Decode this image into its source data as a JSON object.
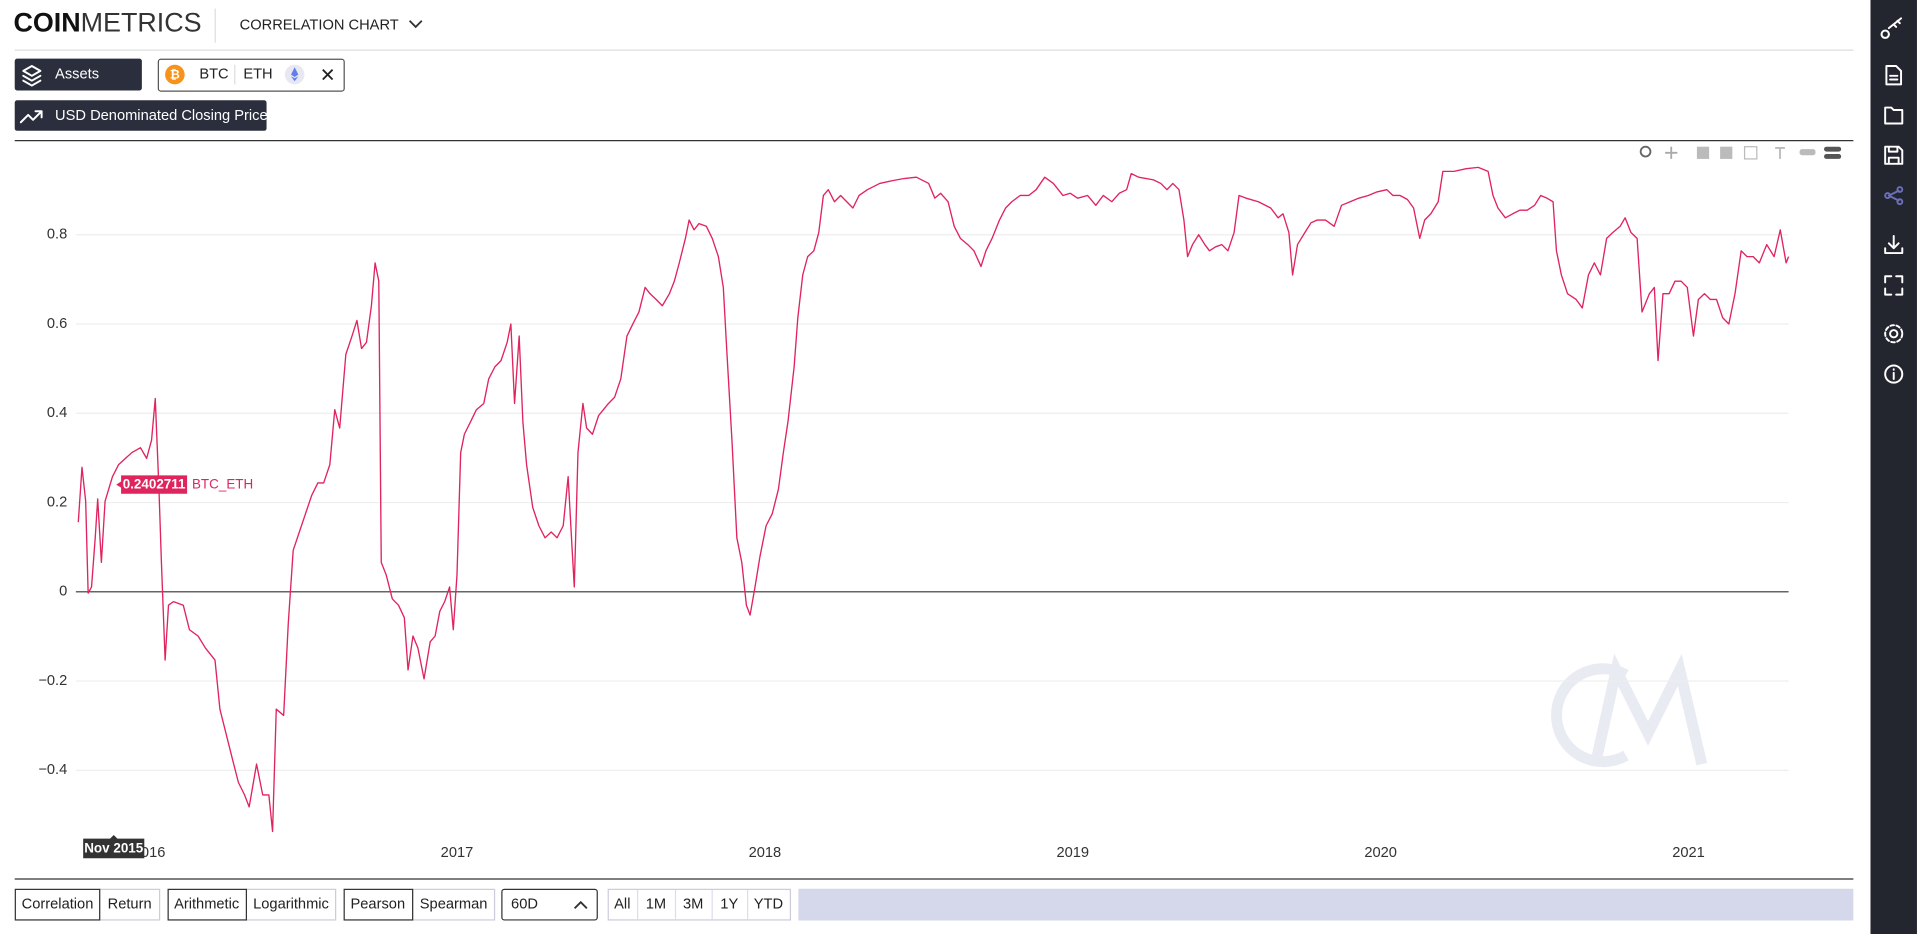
{
  "header": {
    "logo_bold": "COIN",
    "logo_light": "METRICS",
    "title": "CORRELATION CHART"
  },
  "toolbar": {
    "assets_button": "Assets",
    "assets": [
      "BTC",
      "ETH"
    ],
    "metric_button": "USD Denominated Closing Price"
  },
  "chart_data": {
    "type": "line",
    "x": [
      2015.77,
      2015.782,
      2015.794,
      2015.802,
      2015.813,
      2015.825,
      2015.833,
      2015.845,
      2015.857,
      2015.881,
      2015.901,
      2015.944,
      2015.972,
      2015.992,
      2016.008,
      2016.02,
      2016.032,
      2016.04,
      2016.052,
      2016.063,
      2016.079,
      2016.111,
      2016.131,
      2016.159,
      2016.183,
      2016.214,
      2016.23,
      2016.25,
      2016.27,
      2016.29,
      2016.31,
      2016.325,
      2016.349,
      2016.369,
      2016.389,
      2016.401,
      2016.413,
      2016.437,
      2016.452,
      2016.468,
      2016.488,
      2016.508,
      2016.528,
      2016.548,
      2016.567,
      2016.587,
      2016.603,
      2016.619,
      2016.639,
      2016.659,
      2016.675,
      2016.69,
      2016.706,
      2016.722,
      2016.734,
      2016.746,
      2016.754,
      2016.77,
      2016.79,
      2016.81,
      2016.829,
      2016.841,
      2016.857,
      2016.873,
      2016.893,
      2016.913,
      2016.929,
      2016.944,
      2016.96,
      2016.976,
      2016.988,
      2017.0,
      2017.012,
      2017.024,
      2017.044,
      2017.063,
      2017.087,
      2017.103,
      2017.123,
      2017.143,
      2017.163,
      2017.175,
      2017.187,
      2017.202,
      2017.214,
      2017.226,
      2017.246,
      2017.266,
      2017.286,
      2017.306,
      2017.325,
      2017.345,
      2017.361,
      2017.373,
      2017.381,
      2017.393,
      2017.409,
      2017.421,
      2017.44,
      2017.46,
      2017.492,
      2017.512,
      2017.532,
      2017.552,
      2017.571,
      2017.591,
      2017.611,
      2017.627,
      2017.647,
      2017.667,
      2017.69,
      2017.706,
      2017.722,
      2017.742,
      2017.754,
      2017.77,
      2017.786,
      2017.81,
      2017.829,
      2017.849,
      2017.865,
      2017.877,
      2017.893,
      2017.909,
      2017.925,
      2017.94,
      2017.952,
      2017.968,
      2017.984,
      2018.004,
      2018.024,
      2018.044,
      2018.06,
      2018.075,
      2018.095,
      2018.107,
      2018.123,
      2018.139,
      2018.159,
      2018.175,
      2018.19,
      2018.206,
      2018.226,
      2018.246,
      2018.266,
      2018.286,
      2018.306,
      2018.333,
      2018.373,
      2018.413,
      2018.452,
      2018.492,
      2018.532,
      2018.552,
      2018.571,
      2018.595,
      2018.615,
      2018.635,
      2018.659,
      2018.679,
      2018.702,
      2018.718,
      2018.738,
      2018.762,
      2018.782,
      2018.802,
      2018.829,
      2018.857,
      2018.881,
      2018.909,
      2018.937,
      2018.968,
      2018.992,
      2019.016,
      2019.048,
      2019.075,
      2019.099,
      2019.127,
      2019.151,
      2019.175,
      2019.19,
      2019.214,
      2019.262,
      2019.286,
      2019.306,
      2019.325,
      2019.345,
      2019.361,
      2019.373,
      2019.389,
      2019.409,
      2019.429,
      2019.444,
      2019.464,
      2019.484,
      2019.504,
      2019.524,
      2019.54,
      2019.563,
      2019.603,
      2019.643,
      2019.667,
      2019.683,
      2019.702,
      2019.714,
      2019.73,
      2019.754,
      2019.774,
      2019.794,
      2019.821,
      2019.849,
      2019.873,
      2019.901,
      2019.929,
      2019.96,
      2019.988,
      2020.02,
      2020.04,
      2020.063,
      2020.087,
      2020.107,
      2020.127,
      2020.143,
      2020.163,
      2020.187,
      2020.202,
      2020.238,
      2020.278,
      2020.317,
      2020.349,
      2020.365,
      2020.381,
      2020.405,
      2020.429,
      2020.452,
      2020.476,
      2020.5,
      2020.52,
      2020.54,
      2020.56,
      2020.571,
      2020.587,
      2020.607,
      2020.635,
      2020.655,
      2020.675,
      2020.694,
      2020.714,
      2020.734,
      2020.754,
      2020.778,
      2020.794,
      2020.813,
      2020.833,
      2020.849,
      2020.873,
      2020.889,
      2020.901,
      2020.917,
      2020.937,
      2020.956,
      2020.976,
      2020.996,
      2021.016,
      2021.032,
      2021.052,
      2021.071,
      2021.091,
      2021.111,
      2021.131,
      2021.151,
      2021.171,
      2021.19,
      2021.21,
      2021.23,
      2021.254,
      2021.278,
      2021.298,
      2021.317,
      2021.325
    ],
    "series": [
      {
        "name": "BTC_ETH",
        "color": "#e0245e",
        "values": [
          0.156,
          0.279,
          0.203,
          -0.003,
          0.011,
          0.121,
          0.208,
          0.066,
          0.203,
          0.258,
          0.285,
          0.312,
          0.323,
          0.299,
          0.34,
          0.433,
          0.23,
          0.066,
          -0.153,
          -0.03,
          -0.022,
          -0.03,
          -0.085,
          -0.099,
          -0.126,
          -0.153,
          -0.263,
          -0.318,
          -0.373,
          -0.427,
          -0.455,
          -0.482,
          -0.386,
          -0.455,
          -0.455,
          -0.537,
          -0.263,
          -0.277,
          -0.071,
          0.093,
          0.134,
          0.175,
          0.216,
          0.244,
          0.244,
          0.285,
          0.408,
          0.367,
          0.532,
          0.573,
          0.608,
          0.545,
          0.559,
          0.641,
          0.737,
          0.696,
          0.066,
          0.038,
          -0.016,
          -0.03,
          -0.058,
          -0.175,
          -0.099,
          -0.126,
          -0.195,
          -0.112,
          -0.099,
          -0.044,
          -0.022,
          0.011,
          -0.085,
          0.038,
          0.312,
          0.353,
          0.381,
          0.408,
          0.422,
          0.477,
          0.504,
          0.518,
          0.559,
          0.6,
          0.422,
          0.573,
          0.381,
          0.285,
          0.189,
          0.148,
          0.121,
          0.134,
          0.121,
          0.148,
          0.258,
          0.107,
          0.011,
          0.312,
          0.422,
          0.367,
          0.353,
          0.395,
          0.422,
          0.436,
          0.477,
          0.573,
          0.6,
          0.627,
          0.682,
          0.668,
          0.655,
          0.641,
          0.668,
          0.696,
          0.737,
          0.792,
          0.833,
          0.811,
          0.825,
          0.819,
          0.792,
          0.751,
          0.682,
          0.532,
          0.34,
          0.121,
          0.066,
          -0.03,
          -0.052,
          0.011,
          0.079,
          0.148,
          0.175,
          0.23,
          0.312,
          0.381,
          0.504,
          0.614,
          0.71,
          0.751,
          0.764,
          0.805,
          0.888,
          0.901,
          0.874,
          0.888,
          0.874,
          0.86,
          0.888,
          0.901,
          0.915,
          0.921,
          0.926,
          0.929,
          0.915,
          0.882,
          0.893,
          0.874,
          0.819,
          0.792,
          0.778,
          0.764,
          0.729,
          0.764,
          0.792,
          0.833,
          0.86,
          0.874,
          0.888,
          0.888,
          0.901,
          0.929,
          0.915,
          0.888,
          0.893,
          0.882,
          0.888,
          0.866,
          0.888,
          0.874,
          0.893,
          0.901,
          0.937,
          0.929,
          0.923,
          0.915,
          0.901,
          0.915,
          0.901,
          0.833,
          0.751,
          0.778,
          0.8,
          0.778,
          0.764,
          0.773,
          0.778,
          0.764,
          0.805,
          0.888,
          0.882,
          0.874,
          0.86,
          0.838,
          0.847,
          0.805,
          0.71,
          0.778,
          0.805,
          0.827,
          0.833,
          0.833,
          0.819,
          0.866,
          0.874,
          0.882,
          0.888,
          0.896,
          0.901,
          0.888,
          0.888,
          0.879,
          0.86,
          0.792,
          0.833,
          0.847,
          0.874,
          0.942,
          0.942,
          0.948,
          0.951,
          0.942,
          0.888,
          0.86,
          0.838,
          0.847,
          0.855,
          0.855,
          0.866,
          0.888,
          0.882,
          0.874,
          0.764,
          0.71,
          0.668,
          0.655,
          0.636,
          0.71,
          0.737,
          0.71,
          0.792,
          0.805,
          0.819,
          0.838,
          0.805,
          0.792,
          0.627,
          0.668,
          0.682,
          0.518,
          0.668,
          0.668,
          0.696,
          0.696,
          0.682,
          0.573,
          0.655,
          0.668,
          0.655,
          0.655,
          0.614,
          0.6,
          0.668,
          0.764,
          0.751,
          0.751,
          0.737,
          0.778,
          0.751,
          0.811,
          0.737,
          0.751
        ]
      }
    ],
    "xlim": [
      2015.77,
      2021.325
    ],
    "xticks": [
      2016,
      2017,
      2018,
      2019,
      2020,
      2021
    ],
    "ylim": [
      -0.564,
      1.011
    ],
    "yticks": [
      {
        "value": -0.4,
        "label": "−0.4"
      },
      {
        "value": -0.2,
        "label": "−0.2"
      },
      0,
      0.2,
      0.4,
      0.6,
      0.8
    ],
    "grid": true,
    "crosshair": {
      "value": 0.2402711,
      "x_label": "Nov 2015"
    }
  },
  "controls": {
    "mode": [
      "Correlation",
      "Return"
    ],
    "scale": [
      "Arithmetic",
      "Logarithmic"
    ],
    "method": [
      "Pearson",
      "Spearman"
    ],
    "window": "60D",
    "ranges": [
      "All",
      "1M",
      "3M",
      "1Y",
      "YTD"
    ]
  }
}
